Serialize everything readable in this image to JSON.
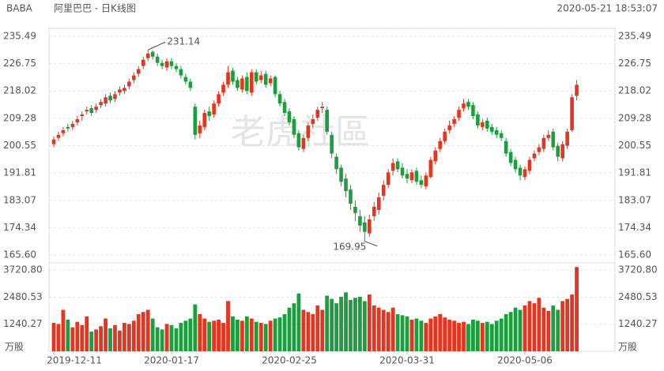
{
  "chart_data": {
    "type": "candlestick",
    "ticker": "BABA",
    "title": "阿里巴巴 - 日K线图",
    "timestamp": "2020-05-21 18:53:07",
    "watermark": "老虎社區",
    "up_color": "#e8341f",
    "down_color": "#1b9e3e",
    "grid": true,
    "categories": [
      "2019-12-11",
      null,
      null,
      null,
      null,
      null,
      null,
      null,
      null,
      null,
      null,
      null,
      null,
      null,
      null,
      null,
      null,
      null,
      null,
      null,
      null,
      null,
      null,
      null,
      null,
      "2020-01-17",
      null,
      null,
      null,
      null,
      null,
      null,
      null,
      null,
      null,
      null,
      null,
      null,
      null,
      null,
      null,
      null,
      null,
      null,
      null,
      null,
      null,
      null,
      null,
      null,
      "2020-02-25",
      null,
      null,
      null,
      null,
      null,
      null,
      null,
      null,
      null,
      null,
      null,
      null,
      null,
      null,
      null,
      null,
      null,
      null,
      null,
      null,
      null,
      null,
      null,
      null,
      "2020-03-31",
      null,
      null,
      null,
      null,
      null,
      null,
      null,
      null,
      null,
      null,
      null,
      null,
      null,
      null,
      null,
      null,
      null,
      null,
      null,
      null,
      null,
      null,
      null,
      null,
      "2020-05-06",
      null,
      null,
      null,
      null,
      null,
      null,
      null,
      null,
      null,
      null,
      null
    ],
    "open": [
      201,
      203,
      204.5,
      206.5,
      206.5,
      208,
      210,
      211.5,
      212.5,
      212,
      213.5,
      214,
      216.5,
      215.5,
      217.5,
      218,
      219.5,
      221.5,
      223.5,
      226,
      228.5,
      230.5,
      229,
      227,
      225.5,
      227.5,
      226,
      225,
      222.5,
      221,
      213,
      204.5,
      206.5,
      211.5,
      210.5,
      214,
      217.5,
      220,
      224.5,
      221.5,
      218.5,
      222.5,
      217.5,
      224,
      221.5,
      223.5,
      220.5,
      222.5,
      217,
      214.5,
      211.5,
      209,
      204.5,
      199.5,
      203,
      207.5,
      209.5,
      212.5,
      212,
      204,
      197,
      193.5,
      190,
      186.5,
      181,
      178,
      176,
      172.5,
      178,
      180,
      184.5,
      188,
      192.5,
      195.5,
      193.5,
      191.5,
      189.5,
      192.5,
      189.5,
      187.5,
      190.5,
      195.5,
      199.5,
      202,
      205.5,
      207.5,
      209.5,
      212.5,
      214.5,
      213.5,
      210.5,
      206.5,
      208.5,
      206.5,
      205.5,
      204.5,
      202,
      198.5,
      196,
      193.5,
      190.5,
      192.5,
      196.5,
      198.5,
      199.5,
      203,
      205,
      200.5,
      196.5,
      200.5,
      205.5,
      216.5
    ],
    "high": [
      203.5,
      205,
      206.5,
      207.5,
      208.5,
      210,
      211.5,
      213,
      213.5,
      214,
      215.5,
      217,
      217.5,
      218,
      219.5,
      220,
      222,
      224,
      226,
      229,
      231.14,
      231,
      230,
      228,
      228.5,
      228.5,
      227,
      226,
      223.5,
      222,
      214,
      208.5,
      212,
      213,
      215,
      218,
      221,
      226,
      225.5,
      222.5,
      223,
      224,
      225,
      225,
      224.5,
      224.5,
      223,
      223,
      218,
      215.5,
      212.5,
      210,
      205.5,
      204,
      208,
      210.5,
      213,
      214.5,
      213,
      205,
      198,
      194.5,
      191.5,
      188,
      183,
      180,
      178,
      178.5,
      182.5,
      185.5,
      189.5,
      193,
      196.5,
      196.5,
      195,
      193,
      193,
      193.5,
      191,
      192,
      197,
      200,
      203,
      206,
      208.5,
      210,
      213,
      215.5,
      215.5,
      214.5,
      211.5,
      209,
      209.5,
      207.5,
      206.5,
      205.5,
      203,
      199.5,
      197,
      194.5,
      194,
      197,
      199,
      201,
      204,
      205.5,
      206,
      201.5,
      202,
      206,
      217,
      221.5
    ],
    "low": [
      200,
      202,
      203.5,
      205,
      205.5,
      207,
      208.5,
      210.5,
      210,
      211,
      212.5,
      213,
      214,
      214.5,
      216.5,
      217,
      218.5,
      220.5,
      222.5,
      225,
      227.5,
      228,
      226,
      225,
      224.5,
      225,
      224,
      222,
      220,
      218,
      202.5,
      203,
      205.5,
      208.5,
      209.5,
      213,
      216.5,
      219,
      220,
      218,
      217.5,
      217,
      216.5,
      220,
      220.5,
      219,
      219.5,
      216,
      213,
      210,
      207,
      203,
      199,
      198.5,
      202,
      206,
      208.5,
      211,
      204,
      196.5,
      191.5,
      187.5,
      184,
      180,
      176.5,
      173,
      169.95,
      171.5,
      176.5,
      178.5,
      183,
      187,
      191,
      192,
      190,
      188.5,
      188.5,
      188,
      187,
      186.5,
      190,
      194.5,
      198.5,
      201,
      204.5,
      206.5,
      208.5,
      211.5,
      212,
      209,
      206,
      205.5,
      205,
      204,
      203,
      202,
      197,
      194,
      192,
      189.5,
      189.5,
      191.5,
      195.5,
      197.5,
      198.5,
      202,
      199,
      195.5,
      195.5,
      199.5,
      205,
      215
    ],
    "close": [
      202.5,
      204,
      205.5,
      206,
      207.5,
      209,
      210.5,
      212,
      211,
      213,
      214.5,
      216,
      215,
      217,
      218.5,
      219,
      221,
      223,
      225,
      228,
      230,
      229,
      227,
      226,
      227.5,
      226,
      225,
      223,
      221,
      219,
      204,
      207,
      211,
      210,
      214,
      217,
      220,
      224,
      221,
      219,
      222,
      218,
      224,
      221,
      223,
      220,
      222,
      217,
      214,
      211,
      208,
      204,
      200,
      203,
      207,
      209,
      212,
      213,
      205,
      198,
      193,
      189,
      186,
      182,
      179,
      175,
      173,
      177,
      181,
      184,
      188,
      192,
      195,
      193,
      191,
      190,
      192,
      189,
      188,
      191,
      196,
      199,
      202,
      205,
      207,
      209,
      212,
      214,
      213,
      210,
      207,
      208,
      206,
      205,
      204,
      203,
      198,
      195,
      193,
      191,
      193,
      196,
      198,
      200,
      203,
      204,
      200,
      197,
      201,
      205,
      216,
      220
    ],
    "ylim": [
      165.6,
      235.49
    ],
    "yticks": [
      {
        "value": 165.6,
        "label": "165.60"
      },
      174.34,
      183.07,
      191.81,
      200.55,
      209.28,
      218.02,
      226.75,
      235.49
    ],
    "volume": {
      "unit": "万股",
      "ylim": [
        0,
        3980
      ],
      "yticks": [
        1240.27,
        2480.53,
        {
          "value": 3720.8,
          "label": "3720.80"
        }
      ],
      "values": [
        1300,
        1250,
        1900,
        1450,
        1100,
        1350,
        1200,
        1600,
        900,
        1000,
        1150,
        1500,
        1050,
        1200,
        950,
        1300,
        1250,
        1400,
        1700,
        1800,
        1900,
        1500,
        1100,
        1000,
        1250,
        1200,
        1050,
        1300,
        1400,
        1500,
        2150,
        1700,
        1500,
        1350,
        1400,
        1450,
        1300,
        2300,
        1600,
        1450,
        1400,
        1600,
        1500,
        1350,
        1300,
        1250,
        1400,
        1500,
        1550,
        1700,
        2000,
        2200,
        2650,
        1900,
        1800,
        1700,
        2100,
        1900,
        2550,
        2400,
        2200,
        2500,
        2700,
        2350,
        2450,
        2500,
        2300,
        2600,
        2100,
        2000,
        1900,
        1800,
        2000,
        1700,
        1650,
        1600,
        1450,
        1500,
        1400,
        1300,
        1500,
        1600,
        1700,
        1550,
        1450,
        1400,
        1300,
        1350,
        1250,
        1450,
        1400,
        1300,
        1350,
        1250,
        1400,
        1500,
        1700,
        1800,
        2000,
        1900,
        2100,
        2300,
        2200,
        2450,
        2000,
        1850,
        2100,
        1900,
        2300,
        2400,
        2600,
        3860
      ]
    }
  }
}
